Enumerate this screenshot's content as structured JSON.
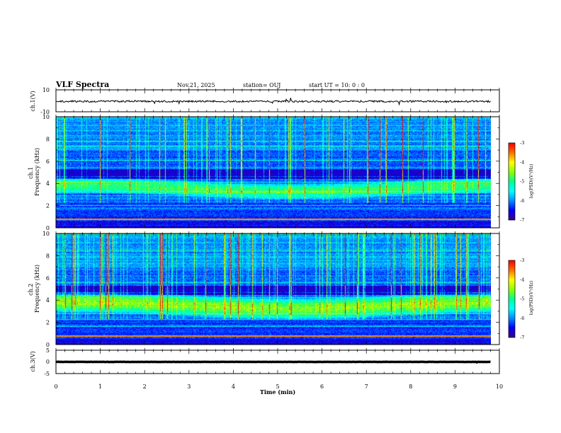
{
  "header": {
    "title": "VLF Spectra",
    "date": "Nov.21, 2025",
    "station": "station= OUJ",
    "start_ut": "start  UT =   10: 0  : 0"
  },
  "colors": {
    "background": "#ffffff",
    "axis": "#000000",
    "trace": "#000000",
    "spectrogram_floor": "#000033",
    "colormap": [
      "#3a0090",
      "#0000ff",
      "#0090ff",
      "#00ffff",
      "#00ff90",
      "#90ff00",
      "#ffff00",
      "#ff7000",
      "#ff0000",
      "#ffffff"
    ]
  },
  "chart_data": [
    {
      "type": "line",
      "name": "ch1-waveform",
      "ylabel": "ch.1(V)",
      "ylim": [
        -10,
        10
      ],
      "yticks": [
        "10",
        "-10"
      ],
      "xlim": [
        0,
        10
      ],
      "baseline": -0.5
    },
    {
      "type": "heatmap",
      "name": "ch1-spectrogram",
      "ylabel": "ch.1\nFrequency (kHz)",
      "ylim": [
        0,
        10
      ],
      "yticks": [
        "0",
        "2",
        "4",
        "6",
        "8",
        "10"
      ],
      "xlim": [
        0,
        9.8
      ],
      "colorbar": {
        "label": "log(PSD)(V²/Hz)",
        "range": [
          -7,
          -3
        ],
        "ticks": [
          "-3",
          "-4",
          "-5",
          "-6",
          "-7"
        ]
      },
      "emission_band_khz": [
        2.8,
        4.3
      ]
    },
    {
      "type": "heatmap",
      "name": "ch2-spectrogram",
      "ylabel": "ch.2\nFrequency (kHz)",
      "ylim": [
        0,
        10
      ],
      "yticks": [
        "0",
        "2",
        "4",
        "6",
        "8",
        "10"
      ],
      "xlim": [
        0,
        9.8
      ],
      "colorbar": {
        "label": "log(PSD)(V²/Hz)",
        "range": [
          -7,
          -3
        ],
        "ticks": [
          "-3",
          "-4",
          "-5",
          "-6",
          "-7"
        ]
      },
      "emission_band_khz": [
        2.5,
        4.5
      ]
    },
    {
      "type": "line",
      "name": "ch3-waveform",
      "ylabel": "ch.3(V)",
      "ylim": [
        -5,
        5
      ],
      "yticks": [
        "5",
        "0",
        "-5"
      ],
      "xlim": [
        0,
        10
      ],
      "baseline": 0
    }
  ],
  "xaxis": {
    "label": "Time (min)",
    "range": [
      0,
      10
    ],
    "ticks": [
      "0",
      "1",
      "2",
      "3",
      "4",
      "5",
      "6",
      "7",
      "8",
      "9",
      "10"
    ]
  }
}
